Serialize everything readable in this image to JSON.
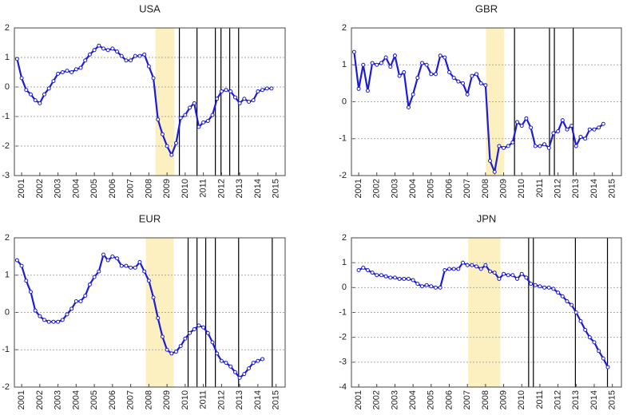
{
  "chart_data": [
    {
      "type": "line",
      "title": "USA",
      "color": "#1c1cd6",
      "shade_color": "#fdf0c0",
      "grid": true,
      "xlim": [
        2000.6,
        2015.5
      ],
      "xticks": [
        2001,
        2002,
        2003,
        2004,
        2005,
        2006,
        2007,
        2008,
        2009,
        2010,
        2011,
        2012,
        2013,
        2014,
        2015
      ],
      "ylim": [
        -3,
        2
      ],
      "yticks": [
        -3,
        -2,
        -1,
        0,
        1,
        2
      ],
      "shaded": [
        2008.36,
        2009.41
      ],
      "vlines": [
        2009.68,
        2010.65,
        2011.66,
        2011.97,
        2012.45,
        2012.94
      ],
      "x": [
        2000.75,
        2001,
        2001.25,
        2001.5,
        2001.75,
        2002,
        2002.25,
        2002.5,
        2002.75,
        2003,
        2003.25,
        2003.5,
        2003.75,
        2004,
        2004.25,
        2004.5,
        2004.75,
        2005,
        2005.25,
        2005.5,
        2005.75,
        2006,
        2006.25,
        2006.5,
        2006.75,
        2007,
        2007.25,
        2007.5,
        2007.75,
        2008,
        2008.25,
        2008.5,
        2008.75,
        2009,
        2009.25,
        2009.5,
        2009.75,
        2010,
        2010.25,
        2010.5,
        2010.75,
        2011,
        2011.25,
        2011.5,
        2011.75,
        2012,
        2012.25,
        2012.5,
        2012.75,
        2013,
        2013.25,
        2013.5,
        2013.75,
        2014,
        2014.25,
        2014.5,
        2014.75
      ],
      "values": [
        0.95,
        0.3,
        -0.1,
        -0.25,
        -0.45,
        -0.55,
        -0.25,
        -0.05,
        0.2,
        0.45,
        0.5,
        0.55,
        0.5,
        0.6,
        0.65,
        0.9,
        1.1,
        1.25,
        1.4,
        1.3,
        1.25,
        1.3,
        1.2,
        1.05,
        0.9,
        0.9,
        1.05,
        1.05,
        1.1,
        0.7,
        0.3,
        -1.1,
        -1.6,
        -2.0,
        -2.3,
        -1.9,
        -1.05,
        -0.95,
        -0.7,
        -0.55,
        -1.35,
        -1.2,
        -1.15,
        -0.95,
        -0.4,
        -0.15,
        -0.1,
        -0.15,
        -0.35,
        -0.55,
        -0.4,
        -0.5,
        -0.45,
        -0.15,
        -0.1,
        -0.05,
        -0.05
      ]
    },
    {
      "type": "line",
      "title": "GBR",
      "color": "#1c1cd6",
      "shade_color": "#fdf0c0",
      "grid": true,
      "xlim": [
        2000.6,
        2015.5
      ],
      "xticks": [
        2001,
        2002,
        2003,
        2004,
        2005,
        2006,
        2007,
        2008,
        2009,
        2010,
        2011,
        2012,
        2013,
        2014,
        2015
      ],
      "ylim": [
        -2,
        2
      ],
      "yticks": [
        -2,
        -1,
        0,
        1,
        2
      ],
      "shaded": [
        2008.02,
        2009.03
      ],
      "vlines": [
        2009.6,
        2011.53,
        2011.8,
        2012.84
      ],
      "x": [
        2000.75,
        2001,
        2001.25,
        2001.5,
        2001.75,
        2002,
        2002.25,
        2002.5,
        2002.75,
        2003,
        2003.25,
        2003.5,
        2003.75,
        2004,
        2004.25,
        2004.5,
        2004.75,
        2005,
        2005.25,
        2005.5,
        2005.75,
        2006,
        2006.25,
        2006.5,
        2006.75,
        2007,
        2007.25,
        2007.5,
        2007.75,
        2008,
        2008.25,
        2008.5,
        2008.75,
        2009,
        2009.25,
        2009.5,
        2009.75,
        2010,
        2010.25,
        2010.5,
        2010.75,
        2011,
        2011.25,
        2011.5,
        2011.75,
        2012,
        2012.25,
        2012.5,
        2012.75,
        2013,
        2013.25,
        2013.5,
        2013.75,
        2014,
        2014.25,
        2014.5
      ],
      "values": [
        1.35,
        0.35,
        1.0,
        0.3,
        1.05,
        1.0,
        1.05,
        1.2,
        0.95,
        1.25,
        0.7,
        0.8,
        -0.15,
        0.2,
        0.65,
        1.05,
        1.0,
        0.75,
        0.75,
        1.25,
        1.2,
        0.8,
        0.65,
        0.55,
        0.5,
        0.2,
        0.7,
        0.75,
        0.5,
        0.45,
        -1.6,
        -1.9,
        -1.2,
        -1.25,
        -1.2,
        -1.1,
        -0.55,
        -0.65,
        -0.45,
        -0.7,
        -1.2,
        -1.2,
        -1.15,
        -1.25,
        -0.85,
        -0.8,
        -0.5,
        -0.75,
        -0.65,
        -1.2,
        -0.95,
        -1.0,
        -0.75,
        -0.75,
        -0.7,
        -0.6
      ]
    },
    {
      "type": "line",
      "title": "EUR",
      "color": "#1c1cd6",
      "shade_color": "#fdf0c0",
      "grid": true,
      "xlim": [
        2000.6,
        2015.5
      ],
      "xticks": [
        2001,
        2002,
        2003,
        2004,
        2005,
        2006,
        2007,
        2008,
        2009,
        2010,
        2011,
        2012,
        2013,
        2014,
        2015
      ],
      "ylim": [
        -2,
        2
      ],
      "yticks": [
        -2,
        -1,
        0,
        1,
        2
      ],
      "shaded": [
        2007.83,
        2009.37
      ],
      "vlines": [
        2010.16,
        2010.65,
        2011.13,
        2011.66,
        2012.94,
        2014.79
      ],
      "x": [
        2000.75,
        2001,
        2001.25,
        2001.5,
        2001.75,
        2002,
        2002.25,
        2002.5,
        2002.75,
        2003,
        2003.25,
        2003.5,
        2003.75,
        2004,
        2004.25,
        2004.5,
        2004.75,
        2005,
        2005.25,
        2005.5,
        2005.75,
        2006,
        2006.25,
        2006.5,
        2006.75,
        2007,
        2007.25,
        2007.5,
        2007.75,
        2008,
        2008.25,
        2008.5,
        2008.75,
        2009,
        2009.25,
        2009.5,
        2009.75,
        2010,
        2010.25,
        2010.5,
        2010.75,
        2011,
        2011.25,
        2011.5,
        2011.75,
        2012,
        2012.25,
        2012.5,
        2012.75,
        2013,
        2013.25,
        2013.5,
        2013.75,
        2014,
        2014.25
      ],
      "values": [
        1.4,
        1.25,
        0.85,
        0.55,
        0.05,
        -0.1,
        -0.2,
        -0.25,
        -0.25,
        -0.25,
        -0.2,
        -0.05,
        0.1,
        0.3,
        0.3,
        0.45,
        0.75,
        0.95,
        1.1,
        1.55,
        1.4,
        1.5,
        1.45,
        1.25,
        1.25,
        1.2,
        1.2,
        1.35,
        1.1,
        0.85,
        0.4,
        -0.15,
        -0.65,
        -1.0,
        -1.1,
        -1.05,
        -0.9,
        -0.7,
        -0.55,
        -0.45,
        -0.35,
        -0.4,
        -0.55,
        -0.8,
        -1.1,
        -1.3,
        -1.35,
        -1.45,
        -1.6,
        -1.75,
        -1.65,
        -1.5,
        -1.35,
        -1.3,
        -1.25
      ]
    },
    {
      "type": "line",
      "title": "JPN",
      "color": "#1c1cd6",
      "shade_color": "#fdf0c0",
      "grid": true,
      "xlim": [
        2000.6,
        2015.5
      ],
      "xticks": [
        2001,
        2002,
        2003,
        2004,
        2005,
        2006,
        2007,
        2008,
        2009,
        2010,
        2011,
        2012,
        2013,
        2014,
        2015
      ],
      "ylim": [
        -4,
        2
      ],
      "yticks": [
        -4,
        -3,
        -2,
        -1,
        0,
        1,
        2
      ],
      "shaded": [
        2007.04,
        2008.82
      ],
      "vlines": [
        2010.38,
        2010.64,
        2012.96,
        2014.73
      ],
      "x": [
        2001,
        2001.25,
        2001.5,
        2001.75,
        2002,
        2002.25,
        2002.5,
        2002.75,
        2003,
        2003.25,
        2003.5,
        2003.75,
        2004,
        2004.25,
        2004.5,
        2004.75,
        2005,
        2005.25,
        2005.5,
        2005.75,
        2006,
        2006.25,
        2006.5,
        2006.75,
        2007,
        2007.25,
        2007.5,
        2007.75,
        2008,
        2008.25,
        2008.5,
        2008.75,
        2009,
        2009.25,
        2009.5,
        2009.75,
        2010,
        2010.25,
        2010.5,
        2010.75,
        2011,
        2011.25,
        2011.5,
        2011.75,
        2012,
        2012.25,
        2012.5,
        2012.75,
        2013,
        2013.25,
        2013.5,
        2013.75,
        2014,
        2014.25,
        2014.5,
        2014.75
      ],
      "values": [
        0.7,
        0.8,
        0.7,
        0.6,
        0.5,
        0.5,
        0.45,
        0.4,
        0.4,
        0.35,
        0.35,
        0.35,
        0.3,
        0.15,
        0.05,
        0.1,
        0.05,
        0.0,
        0.0,
        0.7,
        0.75,
        0.75,
        0.75,
        1.0,
        0.9,
        0.9,
        0.85,
        0.75,
        0.9,
        0.65,
        0.6,
        0.35,
        0.55,
        0.5,
        0.5,
        0.35,
        0.55,
        0.4,
        0.15,
        0.1,
        0.05,
        0.0,
        0.0,
        -0.05,
        -0.2,
        -0.35,
        -0.55,
        -0.7,
        -1.0,
        -1.35,
        -1.7,
        -2.0,
        -2.2,
        -2.55,
        -2.85,
        -3.2
      ]
    }
  ]
}
